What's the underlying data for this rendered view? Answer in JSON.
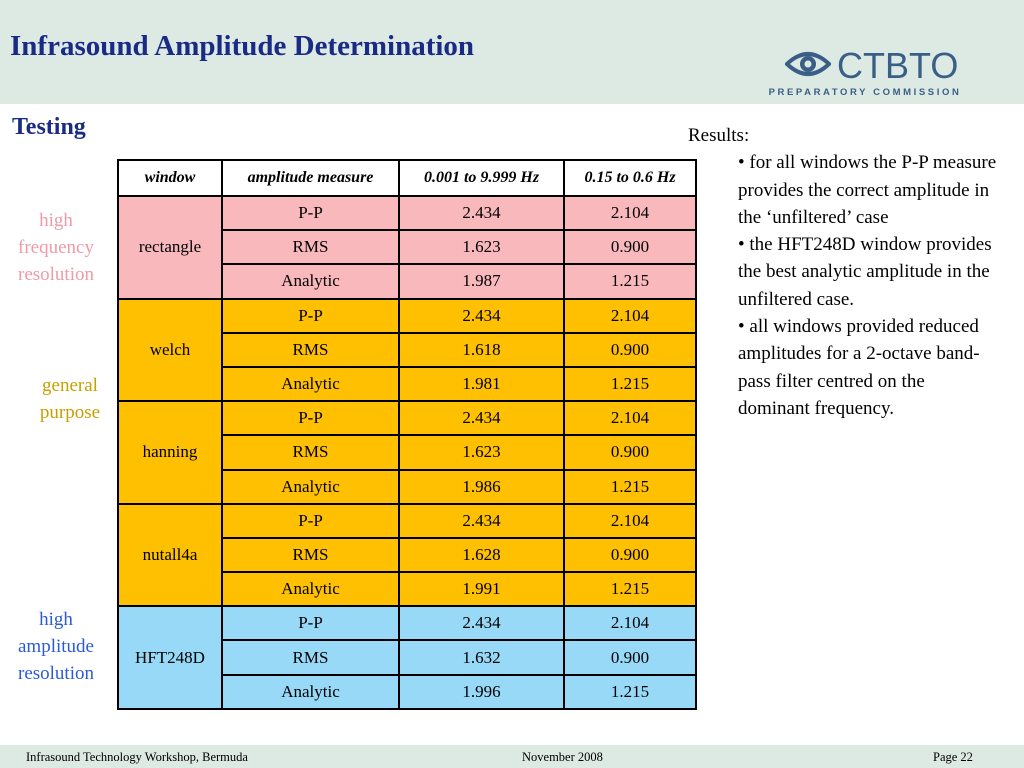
{
  "header": {
    "title": "Infrasound Amplitude Determination",
    "logo": {
      "name": "CTBTO",
      "subtitle": "PREPARATORY COMMISSION",
      "icon": "eye-logo-icon",
      "color": "#3a5f86"
    }
  },
  "subtitle": "Testing",
  "side_labels": {
    "high_freq": [
      "high",
      "frequency",
      "resolution"
    ],
    "general": [
      "general",
      "purpose"
    ],
    "high_amp": [
      "high",
      "amplitude",
      "resolution"
    ]
  },
  "table": {
    "headers": [
      "window",
      "amplitude measure",
      "0.001 to 9.999 Hz",
      "0.15 to 0.6 Hz"
    ],
    "groups": [
      {
        "window": "rectangle",
        "color": "#f8b8bc",
        "rows": [
          {
            "measure": "P-P",
            "f1": "2.434",
            "f2": "2.104"
          },
          {
            "measure": "RMS",
            "f1": "1.623",
            "f2": "0.900"
          },
          {
            "measure": "Analytic",
            "f1": "1.987",
            "f2": "1.215"
          }
        ]
      },
      {
        "window": "welch",
        "color": "#fec000",
        "rows": [
          {
            "measure": "P-P",
            "f1": "2.434",
            "f2": "2.104"
          },
          {
            "measure": "RMS",
            "f1": "1.618",
            "f2": "0.900"
          },
          {
            "measure": "Analytic",
            "f1": "1.981",
            "f2": "1.215"
          }
        ]
      },
      {
        "window": "hanning",
        "color": "#fec000",
        "rows": [
          {
            "measure": "P-P",
            "f1": "2.434",
            "f2": "2.104"
          },
          {
            "measure": "RMS",
            "f1": "1.623",
            "f2": "0.900"
          },
          {
            "measure": "Analytic",
            "f1": "1.986",
            "f2": "1.215"
          }
        ]
      },
      {
        "window": "nutall4a",
        "color": "#fec000",
        "rows": [
          {
            "measure": "P-P",
            "f1": "2.434",
            "f2": "2.104"
          },
          {
            "measure": "RMS",
            "f1": "1.628",
            "f2": "0.900"
          },
          {
            "measure": "Analytic",
            "f1": "1.991",
            "f2": "1.215"
          }
        ]
      },
      {
        "window": "HFT248D",
        "color": "#99d9f8",
        "rows": [
          {
            "measure": "P-P",
            "f1": "2.434",
            "f2": "2.104"
          },
          {
            "measure": "RMS",
            "f1": "1.632",
            "f2": "0.900"
          },
          {
            "measure": "Analytic",
            "f1": "1.996",
            "f2": "1.215"
          }
        ]
      }
    ]
  },
  "results": {
    "heading": "Results:",
    "items": [
      "• for all windows the  P-P measure provides the correct amplitude in the ‘unfiltered’ case",
      "• the  HFT248D window provides the best analytic amplitude in the unfiltered case.",
      "• all windows provided reduced amplitudes for a 2-octave band-pass filter centred on the dominant frequency."
    ]
  },
  "footer": {
    "left": "Infrasound Technology Workshop, Bermuda",
    "center": "November 2008",
    "right": "Page 22"
  }
}
